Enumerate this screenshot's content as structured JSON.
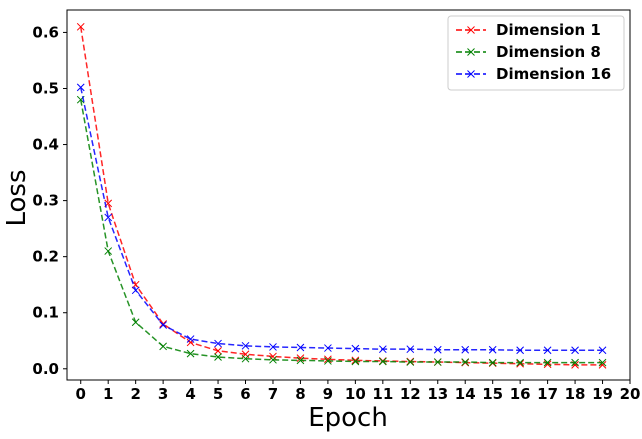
{
  "chart_data": {
    "type": "line",
    "title": "",
    "xlabel": "Epoch",
    "ylabel": "Loss",
    "xlim": [
      -0.5,
      20
    ],
    "ylim": [
      -0.02,
      0.64
    ],
    "x_ticks": [
      0,
      1,
      2,
      3,
      4,
      5,
      6,
      7,
      8,
      9,
      10,
      11,
      12,
      13,
      14,
      15,
      16,
      17,
      18,
      19,
      20
    ],
    "y_ticks": [
      0.0,
      0.1,
      0.2,
      0.3,
      0.4,
      0.5,
      0.6
    ],
    "legend_position": "top-right",
    "grid": false,
    "x": [
      0,
      1,
      2,
      3,
      4,
      5,
      6,
      7,
      8,
      9,
      10,
      11,
      12,
      13,
      14,
      15,
      16,
      17,
      18,
      19
    ],
    "series": [
      {
        "name": "Dimension 1",
        "color": "#ff0000",
        "marker": "x",
        "linestyle": "dashed",
        "values": [
          0.61,
          0.295,
          0.15,
          0.08,
          0.047,
          0.032,
          0.026,
          0.022,
          0.019,
          0.017,
          0.015,
          0.014,
          0.013,
          0.012,
          0.011,
          0.01,
          0.009,
          0.008,
          0.007,
          0.007
        ]
      },
      {
        "name": "Dimension 8",
        "color": "#008000",
        "marker": "x",
        "linestyle": "dashed",
        "values": [
          0.48,
          0.21,
          0.083,
          0.04,
          0.027,
          0.021,
          0.018,
          0.016,
          0.015,
          0.014,
          0.013,
          0.013,
          0.012,
          0.012,
          0.012,
          0.011,
          0.011,
          0.011,
          0.011,
          0.011
        ]
      },
      {
        "name": "Dimension 16",
        "color": "#0000ff",
        "marker": "x",
        "linestyle": "dashed",
        "values": [
          0.502,
          0.27,
          0.14,
          0.078,
          0.053,
          0.045,
          0.041,
          0.039,
          0.038,
          0.037,
          0.036,
          0.035,
          0.035,
          0.034,
          0.034,
          0.034,
          0.033,
          0.033,
          0.033,
          0.033
        ]
      }
    ]
  }
}
